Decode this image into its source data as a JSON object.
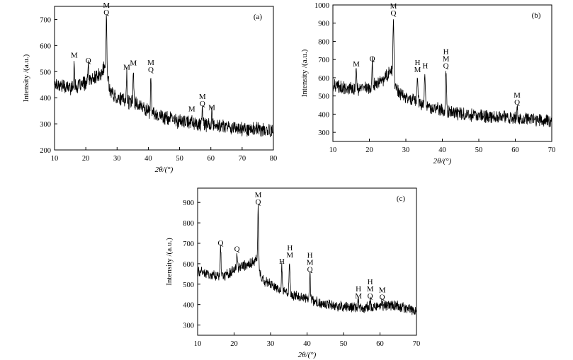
{
  "chart_data": [
    {
      "type": "line",
      "panel_label": "(a)",
      "xlabel": "2θ/(°)",
      "ylabel": "Intensity /(a.u.)",
      "xlim": [
        10,
        80
      ],
      "ylim": [
        200,
        750
      ],
      "xticks": [
        10,
        20,
        30,
        40,
        50,
        60,
        70,
        80
      ],
      "yticks": [
        200,
        300,
        400,
        500,
        600,
        700
      ],
      "profile": [
        [
          10,
          455
        ],
        [
          14,
          440
        ],
        [
          17,
          440
        ],
        [
          19,
          452
        ],
        [
          21,
          462
        ],
        [
          23,
          478
        ],
        [
          25,
          488
        ],
        [
          26,
          520
        ],
        [
          27,
          480
        ],
        [
          28,
          420
        ],
        [
          30,
          400
        ],
        [
          33,
          385
        ],
        [
          36,
          380
        ],
        [
          40,
          350
        ],
        [
          45,
          325
        ],
        [
          50,
          310
        ],
        [
          55,
          300
        ],
        [
          60,
          295
        ],
        [
          65,
          290
        ],
        [
          70,
          282
        ],
        [
          75,
          278
        ],
        [
          80,
          272
        ]
      ],
      "noise": 24,
      "peaks": [
        [
          16.3,
          545
        ],
        [
          20.8,
          525
        ],
        [
          26.6,
          710
        ],
        [
          33.1,
          500
        ],
        [
          35.2,
          515
        ],
        [
          40.8,
          490
        ],
        [
          53.9,
          340
        ],
        [
          57.3,
          360
        ],
        [
          60.3,
          345
        ]
      ],
      "annotations": [
        {
          "x": 16.3,
          "y": 545,
          "labels": [
            "M"
          ]
        },
        {
          "x": 20.8,
          "y": 525,
          "labels": [
            "Q"
          ]
        },
        {
          "x": 26.6,
          "y": 710,
          "labels": [
            "M",
            "Q"
          ]
        },
        {
          "x": 33.1,
          "y": 500,
          "labels": [
            "M"
          ]
        },
        {
          "x": 35.2,
          "y": 515,
          "labels": [
            "M"
          ]
        },
        {
          "x": 40.8,
          "y": 490,
          "labels": [
            "M",
            "Q"
          ]
        },
        {
          "x": 53.9,
          "y": 340,
          "labels": [
            "M"
          ]
        },
        {
          "x": 57.3,
          "y": 360,
          "labels": [
            "M",
            "Q"
          ]
        },
        {
          "x": 60.3,
          "y": 345,
          "labels": [
            "M"
          ]
        }
      ]
    },
    {
      "type": "line",
      "panel_label": "(b)",
      "xlabel": "2θ/(°)",
      "ylabel": "Intensity /(a.u.)",
      "xlim": [
        10,
        70
      ],
      "ylim": [
        250,
        1000
      ],
      "xticks": [
        10,
        20,
        30,
        40,
        50,
        60,
        70
      ],
      "yticks": [
        300,
        400,
        500,
        600,
        700,
        800,
        900,
        1000
      ],
      "profile": [
        [
          10,
          555
        ],
        [
          14,
          540
        ],
        [
          18,
          538
        ],
        [
          20,
          545
        ],
        [
          22,
          570
        ],
        [
          24,
          590
        ],
        [
          25,
          620
        ],
        [
          26,
          650
        ],
        [
          27,
          570
        ],
        [
          28,
          520
        ],
        [
          30,
          490
        ],
        [
          33,
          470
        ],
        [
          36,
          440
        ],
        [
          40,
          420
        ],
        [
          45,
          400
        ],
        [
          50,
          390
        ],
        [
          55,
          385
        ],
        [
          60,
          380
        ],
        [
          65,
          372
        ],
        [
          70,
          360
        ]
      ],
      "noise": 32,
      "peaks": [
        [
          16.4,
          650
        ],
        [
          20.8,
          680
        ],
        [
          26.6,
          930
        ],
        [
          33.2,
          620
        ],
        [
          35.2,
          640
        ],
        [
          41,
          640
        ],
        [
          60.5,
          440
        ]
      ],
      "annotations": [
        {
          "x": 16.4,
          "y": 650,
          "labels": [
            "M"
          ]
        },
        {
          "x": 20.8,
          "y": 680,
          "labels": [
            "Q"
          ]
        },
        {
          "x": 26.6,
          "y": 930,
          "labels": [
            "M",
            "Q"
          ]
        },
        {
          "x": 33.2,
          "y": 620,
          "labels": [
            "H",
            "M"
          ]
        },
        {
          "x": 35.3,
          "y": 640,
          "labels": [
            "H"
          ]
        },
        {
          "x": 41,
          "y": 640,
          "labels": [
            "H",
            "M",
            "Q"
          ]
        },
        {
          "x": 60.5,
          "y": 440,
          "labels": [
            "M",
            "Q"
          ]
        }
      ]
    },
    {
      "type": "line",
      "panel_label": "(c)",
      "xlabel": "2θ/(°)",
      "ylabel": "Intensity /(a.u.)",
      "xlim": [
        10,
        70
      ],
      "ylim": [
        250,
        970
      ],
      "xticks": [
        10,
        20,
        30,
        40,
        50,
        60,
        70
      ],
      "yticks": [
        300,
        400,
        500,
        600,
        700,
        800,
        900
      ],
      "profile": [
        [
          10,
          565
        ],
        [
          14,
          545
        ],
        [
          17,
          540
        ],
        [
          19,
          555
        ],
        [
          21,
          580
        ],
        [
          23,
          590
        ],
        [
          25,
          605
        ],
        [
          26,
          620
        ],
        [
          27,
          560
        ],
        [
          28,
          520
        ],
        [
          30,
          500
        ],
        [
          33,
          470
        ],
        [
          36,
          450
        ],
        [
          40,
          430
        ],
        [
          45,
          400
        ],
        [
          50,
          390
        ],
        [
          55,
          385
        ],
        [
          60,
          390
        ],
        [
          63,
          400
        ],
        [
          66,
          385
        ],
        [
          70,
          370
        ]
      ],
      "noise": 22,
      "peaks": [
        [
          16.3,
          680
        ],
        [
          20.8,
          650
        ],
        [
          26.6,
          880
        ],
        [
          33.1,
          590
        ],
        [
          35.2,
          620
        ],
        [
          40.8,
          550
        ],
        [
          54,
          420
        ],
        [
          57.3,
          420
        ],
        [
          60.5,
          415
        ]
      ],
      "annotations": [
        {
          "x": 16.3,
          "y": 680,
          "labels": [
            "Q"
          ]
        },
        {
          "x": 20.8,
          "y": 650,
          "labels": [
            "Q"
          ]
        },
        {
          "x": 26.6,
          "y": 880,
          "labels": [
            "M",
            "Q"
          ]
        },
        {
          "x": 33.1,
          "y": 590,
          "labels": [
            "H"
          ]
        },
        {
          "x": 35.3,
          "y": 620,
          "labels": [
            "H",
            "M"
          ]
        },
        {
          "x": 40.8,
          "y": 550,
          "labels": [
            "H",
            "M",
            "Q"
          ]
        },
        {
          "x": 54.1,
          "y": 420,
          "labels": [
            "H",
            "M"
          ]
        },
        {
          "x": 57.3,
          "y": 420,
          "labels": [
            "H",
            "M",
            "Q"
          ]
        },
        {
          "x": 60.6,
          "y": 415,
          "labels": [
            "M",
            "Q"
          ]
        }
      ]
    }
  ]
}
